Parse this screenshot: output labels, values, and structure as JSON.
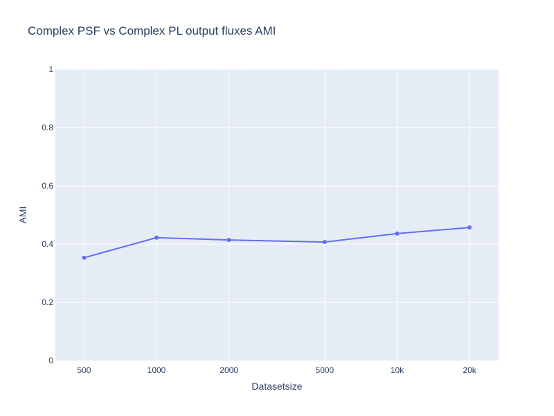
{
  "chart_data": {
    "type": "line",
    "title": "Complex PSF vs Complex PL output fluxes AMI",
    "xlabel": "Datasetsize",
    "ylabel": "AMI",
    "x_scale": "log",
    "x": [
      500,
      1000,
      2000,
      5000,
      10000,
      20000
    ],
    "x_tick_labels": [
      "500",
      "1000",
      "2000",
      "5000",
      "10k",
      "20k"
    ],
    "ylim": [
      0,
      1
    ],
    "y_ticks": [
      0,
      0.2,
      0.4,
      0.6,
      0.8,
      1
    ],
    "y_tick_labels": [
      "0",
      "0.2",
      "0.4",
      "0.6",
      "0.8",
      "1"
    ],
    "grid": true,
    "series": [
      {
        "values": [
          0.353,
          0.422,
          0.414,
          0.407,
          0.436,
          0.457
        ]
      }
    ],
    "colors": {
      "line": "#636efa",
      "plot_bg": "#e5ecf6",
      "grid": "#ffffff",
      "text": "#2a3f5f"
    }
  }
}
